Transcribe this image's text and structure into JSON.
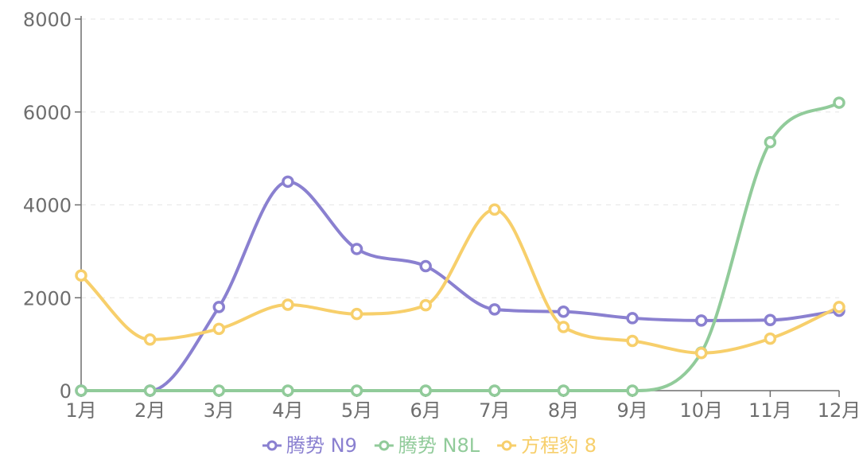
{
  "chart_data": {
    "type": "line",
    "categories": [
      "1月",
      "2月",
      "3月",
      "4月",
      "5月",
      "6月",
      "7月",
      "8月",
      "9月",
      "10月",
      "11月",
      "12月"
    ],
    "y_ticks": [
      "0",
      "2000",
      "4000",
      "6000",
      "8000"
    ],
    "ylim": [
      0,
      8000
    ],
    "grid": true,
    "legend_position": "bottom-center",
    "series": [
      {
        "name": "腾势 N9",
        "color": "#8a80d0",
        "values": [
          0,
          0,
          1800,
          4500,
          3050,
          2680,
          1750,
          1700,
          1560,
          1510,
          1520,
          1720
        ]
      },
      {
        "name": "腾势 N8L",
        "color": "#91cb9a",
        "values": [
          0,
          0,
          0,
          0,
          0,
          0,
          0,
          0,
          0,
          820,
          5350,
          6200
        ]
      },
      {
        "name": "方程豹 8",
        "color": "#f7cf6b",
        "values": [
          2480,
          1100,
          1330,
          1850,
          1650,
          1840,
          3900,
          1370,
          1070,
          810,
          1120,
          1800
        ]
      }
    ]
  }
}
